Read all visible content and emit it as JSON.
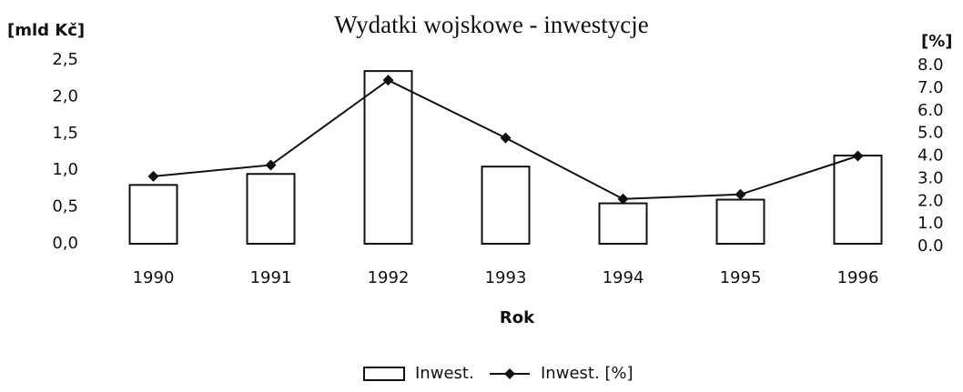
{
  "chart_data": {
    "type": "bar_line",
    "title": "Wydatki wojskowe - inwestycje",
    "y_label": "[mld Kč]",
    "y2_label": "[%]",
    "x_label": "Rok",
    "categories": [
      "1990",
      "1991",
      "1992",
      "1993",
      "1994",
      "1995",
      "1996"
    ],
    "series": [
      {
        "name": "Inwest.",
        "type": "bar",
        "color": "#ffffff",
        "values": [
          0.8,
          0.95,
          2.35,
          1.05,
          0.55,
          0.6,
          1.2
        ]
      },
      {
        "name": "Inwest. [%]",
        "type": "line",
        "axis": "y2",
        "color": "#111111",
        "values": [
          3.1,
          3.6,
          7.35,
          4.8,
          2.1,
          2.3,
          4.0
        ]
      }
    ],
    "ylim": [
      0,
      2.5
    ],
    "yticks": [
      {
        "value": 0,
        "label": "0,0"
      },
      {
        "value": 0.5,
        "label": "0,5"
      },
      {
        "value": 1,
        "label": "1,0"
      },
      {
        "value": 1.5,
        "label": "1,5"
      },
      {
        "value": 2,
        "label": "2,0"
      },
      {
        "value": 2.5,
        "label": "2,5"
      }
    ],
    "y2lim": [
      0,
      8
    ],
    "y2ticks": [
      {
        "value": 0,
        "label": "0.0"
      },
      {
        "value": 1,
        "label": "1.0"
      },
      {
        "value": 2,
        "label": "2.0"
      },
      {
        "value": 3,
        "label": "3.0"
      },
      {
        "value": 4,
        "label": "4.0"
      },
      {
        "value": 5,
        "label": "5.0"
      },
      {
        "value": 6,
        "label": "6.0"
      },
      {
        "value": 7,
        "label": "7.0"
      },
      {
        "value": 8,
        "label": "8.0"
      }
    ],
    "grid": false,
    "legend": "bottom"
  }
}
